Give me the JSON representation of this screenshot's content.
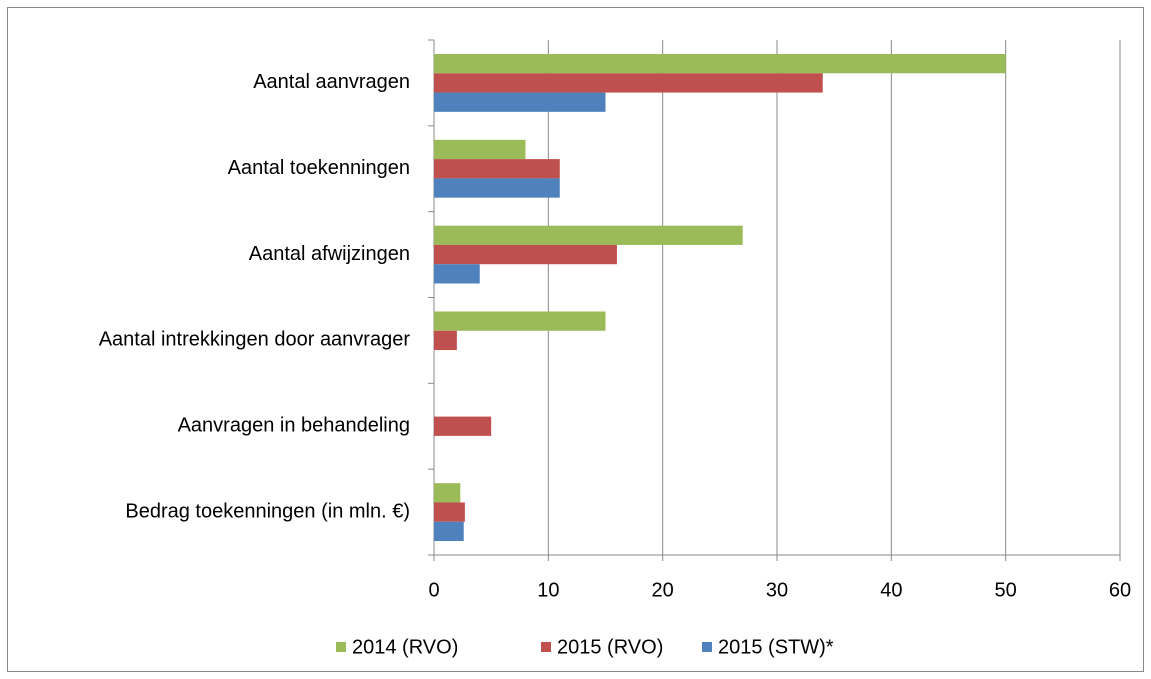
{
  "chart_data": {
    "type": "bar",
    "orientation": "horizontal",
    "categories": [
      "Aantal aanvragen",
      "Aantal toekenningen",
      "Aantal afwijzingen",
      "Aantal intrekkingen door aanvrager",
      "Aanvragen in behandeling",
      "Bedrag toekenningen (in mln. €)"
    ],
    "series": [
      {
        "name": "2014 (RVO)",
        "color": "#9bbb59",
        "values": [
          50,
          8,
          27,
          15,
          null,
          2.3
        ]
      },
      {
        "name": "2015 (RVO)",
        "color": "#c0504d",
        "values": [
          34,
          11,
          16,
          2,
          5,
          2.7
        ]
      },
      {
        "name": "2015 (STW)*",
        "color": "#4f81bd",
        "values": [
          15,
          11,
          4,
          null,
          null,
          2.6
        ]
      }
    ],
    "xlim": [
      0,
      60
    ],
    "xticks": [
      0,
      10,
      20,
      30,
      40,
      50,
      60
    ],
    "grid": true,
    "legend": "bottom"
  }
}
